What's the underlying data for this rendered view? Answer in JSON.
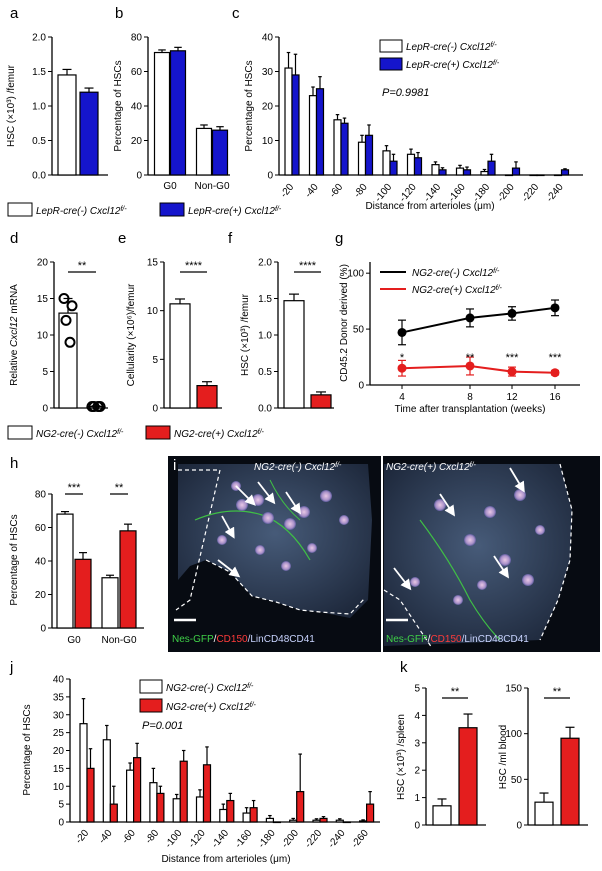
{
  "panels": {
    "a": {
      "label": "a",
      "ylabel": "HSC (×10³) /femur",
      "yticks": [
        "0.0",
        "0.5",
        "1.0",
        "1.5",
        "2.0"
      ],
      "chart_data": {
        "type": "bar",
        "ylim": [
          0,
          2.0
        ],
        "series": [
          {
            "value": 1.45,
            "err": 0.08
          },
          {
            "value": 1.2,
            "err": 0.06
          }
        ]
      }
    },
    "b": {
      "label": "b",
      "ylabel": "Percentage of HSCs",
      "yticks": [
        "0",
        "20",
        "40",
        "60",
        "80"
      ],
      "chart_data": {
        "type": "bar",
        "ylim": [
          0,
          80
        ],
        "categories": [
          "G0",
          "Non-G0"
        ],
        "series": [
          {
            "values": [
              71,
              27
            ],
            "err": [
              1.5,
              2
            ]
          },
          {
            "values": [
              72,
              26
            ],
            "err": [
              2,
              2
            ]
          }
        ]
      }
    },
    "c": {
      "label": "c",
      "ylabel": "Percentage of HSCs",
      "xlabel": "Distance from arterioles (μm)",
      "yticks": [
        "0",
        "10",
        "20",
        "30",
        "40"
      ],
      "pvalue": "P=0.9981",
      "chart_data": {
        "type": "bar",
        "ylim": [
          0,
          40
        ],
        "categories": [
          "-20",
          "-40",
          "-60",
          "-80",
          "-100",
          "-120",
          "-140",
          "-160",
          "-180",
          "-200",
          "-220",
          "-240"
        ],
        "series": [
          {
            "values": [
              31,
              23,
              16,
              9.5,
              7,
              6,
              3,
              2,
              1,
              0,
              0,
              0
            ],
            "err": [
              4.5,
              2.5,
              1.5,
              2,
              1.5,
              1.5,
              0.8,
              0.8,
              0.6,
              0,
              0,
              0
            ]
          },
          {
            "values": [
              29,
              25,
              15,
              11.5,
              4,
              5,
              1.5,
              1.5,
              4,
              2,
              0,
              1.5
            ],
            "err": [
              6,
              3.5,
              1.5,
              3,
              2,
              1.5,
              0.6,
              0.8,
              2,
              1.8,
              0,
              0.3
            ]
          }
        ]
      }
    },
    "d": {
      "label": "d",
      "ylabel_pre": "Relative ",
      "ylabel_ital": "Cxcl12",
      "ylabel_post": " mRNA",
      "yticks": [
        "0",
        "5",
        "10",
        "15",
        "20"
      ],
      "sig": "**",
      "chart_data": {
        "type": "bar",
        "ylim": [
          0,
          20
        ],
        "series": [
          {
            "value": 13,
            "err": 2,
            "points": [
              15,
              14,
              12,
              9
            ]
          },
          {
            "value": 0.2,
            "err": 0.1,
            "points": [
              0.2,
              0.2,
              0.2,
              0.2
            ]
          }
        ]
      }
    },
    "e": {
      "label": "e",
      "ylabel": "Cellularity (×10⁶)/femur",
      "yticks": [
        "0",
        "5",
        "10",
        "15"
      ],
      "sig": "****",
      "chart_data": {
        "type": "bar",
        "ylim": [
          0,
          15
        ],
        "series": [
          {
            "value": 10.7,
            "err": 0.5
          },
          {
            "value": 2.3,
            "err": 0.4
          }
        ]
      }
    },
    "f": {
      "label": "f",
      "ylabel": "HSC (×10³) /femur",
      "yticks": [
        "0.0",
        "0.5",
        "1.0",
        "1.5",
        "2.0"
      ],
      "sig": "****",
      "chart_data": {
        "type": "bar",
        "ylim": [
          0,
          2.0
        ],
        "series": [
          {
            "value": 1.47,
            "err": 0.09
          },
          {
            "value": 0.18,
            "err": 0.04
          }
        ]
      }
    },
    "g": {
      "label": "g",
      "ylabel": "CD45.2 Donor derived (%)",
      "xlabel": "Time after transplantation (weeks)",
      "yticks": [
        "0",
        "50",
        "100"
      ],
      "xticks": [
        "4",
        "8",
        "12",
        "16"
      ],
      "sigs": [
        "*",
        "**",
        "***",
        "***"
      ],
      "chart_data": {
        "type": "line",
        "ylim": [
          0,
          110
        ],
        "x": [
          4,
          8,
          12,
          16
        ],
        "series": [
          {
            "values": [
              47,
              60,
              64,
              69
            ],
            "err": [
              11,
              8,
              6,
              7
            ]
          },
          {
            "values": [
              15,
              17,
              12,
              11
            ],
            "err": [
              7,
              8,
              4,
              2
            ]
          }
        ]
      }
    },
    "h": {
      "label": "h",
      "ylabel": "Percentage of HSCs",
      "yticks": [
        "0",
        "20",
        "40",
        "60",
        "80"
      ],
      "sigs": [
        "***",
        "**"
      ],
      "chart_data": {
        "type": "bar",
        "ylim": [
          0,
          80
        ],
        "categories": [
          "G0",
          "Non-G0"
        ],
        "series": [
          {
            "values": [
              68,
              30
            ],
            "err": [
              1.5,
              1.5
            ]
          },
          {
            "values": [
              41,
              58
            ],
            "err": [
              4,
              4
            ]
          }
        ]
      }
    },
    "i": {
      "label": "i",
      "left_title_pre": "NG2-cre(-) Cxcl12",
      "right_title_pre": "NG2-cre(+) Cxcl12",
      "sup": "f/-",
      "stain_green": "Nes-GFP",
      "stain_sep": "/",
      "stain_red": "CD150",
      "stain_blue": "/LinCD48CD41"
    },
    "j": {
      "label": "j",
      "ylabel": "Percentage of HSCs",
      "xlabel": "Distance from arterioles (μm)",
      "yticks": [
        "0",
        "5",
        "10",
        "15",
        "20",
        "25",
        "30",
        "35",
        "40"
      ],
      "pvalue": "P=0.001",
      "chart_data": {
        "type": "bar",
        "ylim": [
          0,
          40
        ],
        "categories": [
          "-20",
          "-40",
          "-60",
          "-80",
          "-100",
          "-120",
          "-140",
          "-160",
          "-180",
          "-200",
          "-220",
          "-240",
          "-260"
        ],
        "series": [
          {
            "values": [
              27.5,
              23,
              14.5,
              11,
              6.5,
              7,
              3.5,
              2.5,
              1,
              0.5,
              0.5,
              0.5,
              0.3
            ],
            "err": [
              7,
              4,
              2,
              4,
              1.2,
              2,
              1.5,
              1.5,
              0.8,
              0.5,
              0.4,
              0.4,
              0.3
            ]
          },
          {
            "values": [
              15,
              5,
              18,
              8,
              17,
              16,
              6,
              4,
              0,
              8.5,
              1,
              0,
              5
            ],
            "err": [
              5.5,
              5,
              4,
              2,
              3,
              5,
              2,
              2,
              0,
              10.5,
              0.5,
              0,
              3.5
            ]
          }
        ]
      }
    },
    "k": {
      "label": "k",
      "sig": "**",
      "chart_data": [
        {
          "type": "bar",
          "ylabel": "HSC (×10³) /spleen",
          "yticks": [
            "0",
            "1",
            "2",
            "3",
            "4",
            "5"
          ],
          "ylim": [
            0,
            5
          ],
          "series": [
            {
              "value": 0.7,
              "err": 0.25
            },
            {
              "value": 3.55,
              "err": 0.5
            }
          ]
        },
        {
          "type": "bar",
          "ylabel": "HSC /ml blood",
          "yticks": [
            "0",
            "50",
            "100",
            "150"
          ],
          "ylim": [
            0,
            150
          ],
          "series": [
            {
              "value": 25,
              "err": 10
            },
            {
              "value": 95,
              "err": 12
            }
          ]
        }
      ]
    }
  },
  "legends": {
    "lepr_neg": "LepR-cre(-) Cxcl12",
    "lepr_pos": "LepR-cre(+) Cxcl12",
    "ng2_neg": "NG2-cre(-) Cxcl12",
    "ng2_pos": "NG2-cre(+) Cxcl12",
    "sup": "f/-"
  },
  "colors": {
    "blue": "#1515cc",
    "red": "#e41e1e",
    "black": "#000000",
    "white": "#ffffff"
  }
}
